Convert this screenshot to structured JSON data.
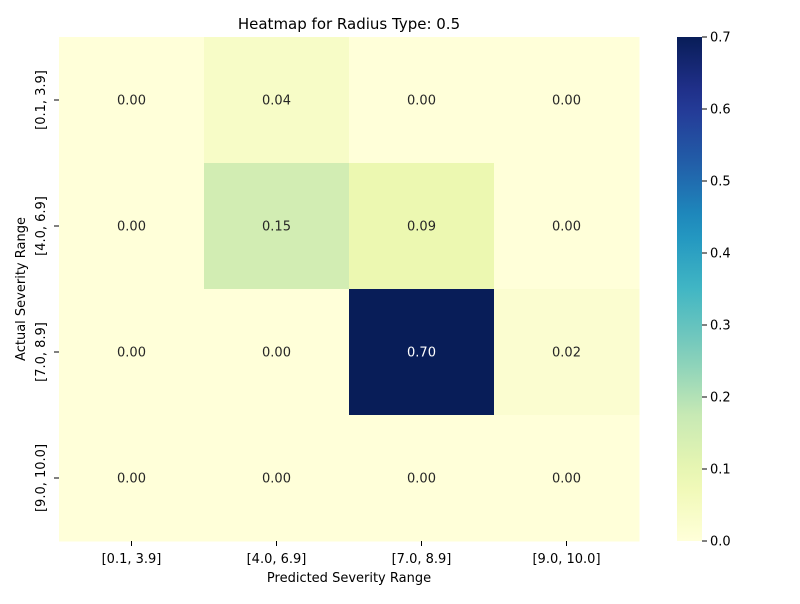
{
  "chart_data": {
    "type": "heatmap",
    "title": "Heatmap for Radius Type: 0.5",
    "xlabel": "Predicted Severity Range",
    "ylabel": "Actual Severity Range",
    "x_categories": [
      "[0.1, 3.9]",
      "[4.0, 6.9]",
      "[7.0, 8.9]",
      "[9.0, 10.0]"
    ],
    "y_categories": [
      "[0.1, 3.9]",
      "[4.0, 6.9]",
      "[7.0, 8.9]",
      "[9.0, 10.0]"
    ],
    "values": [
      [
        0.0,
        0.04,
        0.0,
        0.0
      ],
      [
        0.0,
        0.15,
        0.09,
        0.0
      ],
      [
        0.0,
        0.0,
        0.7,
        0.02
      ],
      [
        0.0,
        0.0,
        0.0,
        0.0
      ]
    ],
    "value_format": "2dp",
    "colormap": "YlGnBu",
    "colorbar": {
      "vmin": 0.0,
      "vmax": 0.7,
      "ticks": [
        0.0,
        0.1,
        0.2,
        0.3,
        0.4,
        0.5,
        0.6,
        0.7
      ]
    },
    "colors": {
      "low_text": "#262626",
      "high_text": "#ffffff",
      "axis": "#000000"
    }
  }
}
